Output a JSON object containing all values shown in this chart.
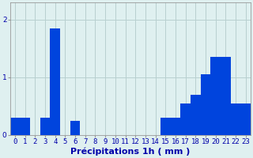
{
  "values": [
    0.3,
    0.3,
    0.0,
    0.3,
    1.85,
    0.0,
    0.25,
    0.0,
    0.0,
    0.0,
    0.0,
    0.0,
    0.0,
    0.0,
    0.0,
    0.3,
    0.3,
    0.55,
    0.7,
    1.05,
    1.35,
    1.35,
    0.55,
    0.55
  ],
  "bar_color": "#0044dd",
  "background_color": "#dff0f0",
  "grid_color": "#b8d0d0",
  "xlabel": "Précipitations 1h ( mm )",
  "ylim": [
    0,
    2.3
  ],
  "yticks": [
    0,
    1,
    2
  ],
  "xlabel_fontsize": 8,
  "tick_fontsize": 6.5,
  "label_color": "#0000aa"
}
